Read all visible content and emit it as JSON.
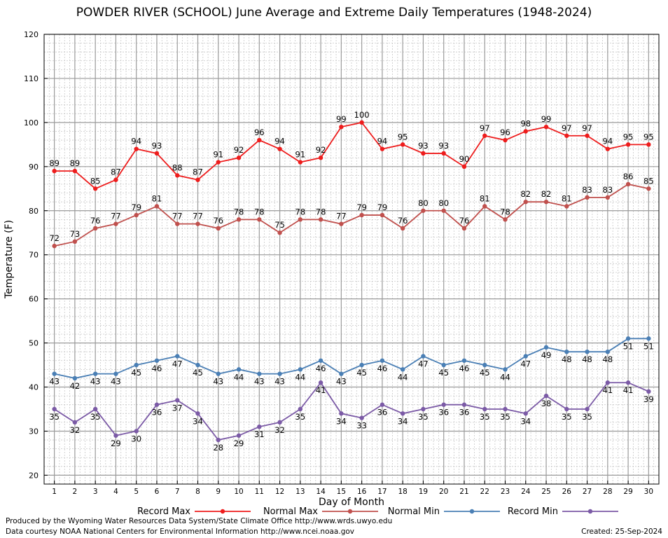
{
  "chart_data": {
    "type": "line",
    "title": "POWDER RIVER (SCHOOL) June Average and Extreme Daily Temperatures (1948-2024)",
    "xlabel": "Day of Month",
    "ylabel": "Temperature (F)",
    "xlim": [
      0.5,
      30.5
    ],
    "ylim": [
      18,
      120
    ],
    "yticks": [
      20,
      30,
      40,
      50,
      60,
      70,
      80,
      90,
      100,
      110,
      120
    ],
    "grid": true,
    "legend_position": "bottom",
    "x": [
      1,
      2,
      3,
      4,
      5,
      6,
      7,
      8,
      9,
      10,
      11,
      12,
      13,
      14,
      15,
      16,
      17,
      18,
      19,
      20,
      21,
      22,
      23,
      24,
      25,
      26,
      27,
      28,
      29,
      30
    ],
    "series": [
      {
        "name": "Record Max",
        "color": "#ee1c1c",
        "values": [
          89,
          89,
          85,
          87,
          94,
          93,
          88,
          87,
          91,
          92,
          96,
          94,
          91,
          92,
          99,
          100,
          94,
          95,
          93,
          93,
          90,
          97,
          96,
          98,
          99,
          97,
          97,
          94,
          95,
          95
        ]
      },
      {
        "name": "Normal Max",
        "color": "#c0504d",
        "values": [
          72,
          73,
          76,
          77,
          79,
          81,
          77,
          77,
          76,
          78,
          78,
          75,
          78,
          78,
          77,
          79,
          79,
          76,
          80,
          80,
          76,
          81,
          78,
          82,
          82,
          81,
          83,
          83,
          86,
          85
        ]
      },
      {
        "name": "Normal Min",
        "color": "#4a7fb5",
        "values": [
          43,
          42,
          43,
          43,
          45,
          46,
          47,
          45,
          43,
          44,
          43,
          43,
          44,
          46,
          43,
          45,
          46,
          44,
          47,
          45,
          46,
          45,
          44,
          47,
          49,
          48,
          48,
          48,
          51,
          51
        ]
      },
      {
        "name": "Record Min",
        "color": "#7b5aa6",
        "values": [
          35,
          32,
          35,
          29,
          30,
          36,
          37,
          34,
          28,
          29,
          31,
          32,
          35,
          41,
          34,
          33,
          36,
          34,
          35,
          36,
          36,
          35,
          35,
          34,
          38,
          35,
          35,
          41,
          41,
          39
        ]
      }
    ]
  },
  "footer": {
    "produced_by": "Produced by the Wyoming Water Resources Data System/State Climate Office http://www.wrds.uwyo.edu",
    "data_courtesy": "Data courtesy NOAA National Centers for Environmental Information http://www.ncei.noaa.gov",
    "created": "Created: 25-Sep-2024"
  }
}
